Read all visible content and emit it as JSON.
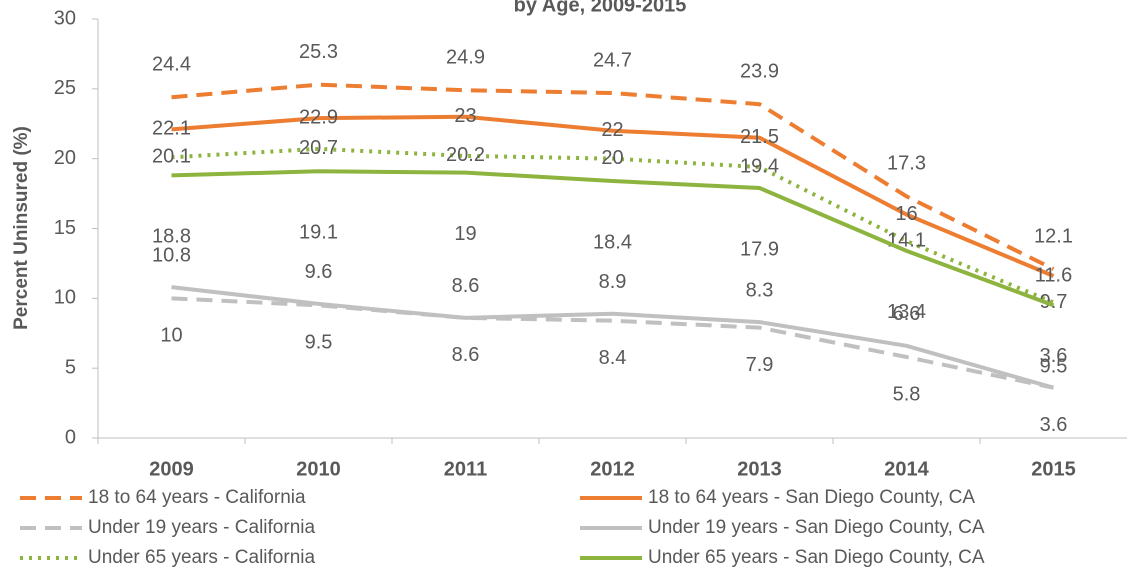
{
  "chart_data": {
    "type": "line",
    "title": "by Age, 2009-2015",
    "y_label": "Percent Uninsured (%)",
    "categories": [
      "2009",
      "2010",
      "2011",
      "2012",
      "2013",
      "2014",
      "2015"
    ],
    "ylim": [
      0,
      30
    ],
    "yticks": [
      0,
      5,
      10,
      15,
      20,
      25,
      30
    ],
    "grid": false,
    "series": [
      {
        "name": "18 to 64 years - California",
        "color": "#ed7d31",
        "line_style": "dashed",
        "values": [
          24.4,
          25.3,
          24.9,
          24.7,
          23.9,
          17.3,
          12.1
        ]
      },
      {
        "name": "18 to 64 years - San Diego County, CA",
        "color": "#ed7d31",
        "line_style": "solid",
        "values": [
          22.1,
          22.9,
          23,
          22,
          21.5,
          16,
          11.6
        ]
      },
      {
        "name": "Under 19 years - California",
        "color": "#c0c0c0",
        "line_style": "dashed",
        "values": [
          10,
          9.5,
          8.6,
          8.4,
          7.9,
          5.8,
          3.6
        ]
      },
      {
        "name": "Under 19 years - San Diego County, CA",
        "color": "#c0c0c0",
        "line_style": "solid",
        "values": [
          10.8,
          9.6,
          8.6,
          8.9,
          8.3,
          6.6,
          3.6
        ]
      },
      {
        "name": "Under 65 years - California",
        "color": "#8db43e",
        "line_style": "dotted",
        "values": [
          20.1,
          20.7,
          20.2,
          20,
          19.4,
          14.1,
          9.7
        ]
      },
      {
        "name": "Under 65 years - San Diego County, CA",
        "color": "#8db43e",
        "line_style": "solid",
        "values": [
          18.8,
          19.1,
          19,
          18.4,
          17.9,
          13.4,
          9.5
        ]
      }
    ]
  }
}
